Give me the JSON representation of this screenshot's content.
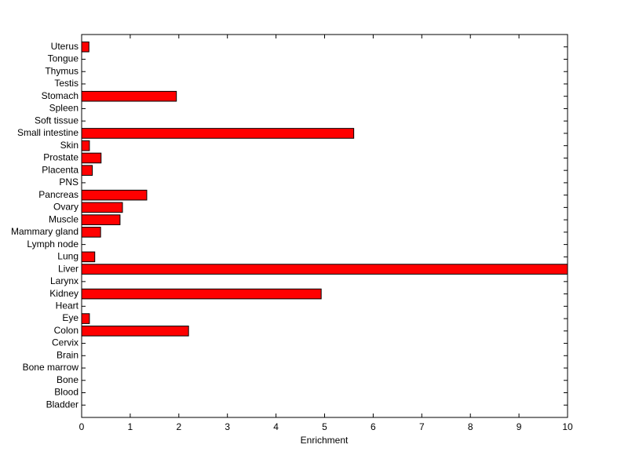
{
  "chart_data": {
    "type": "barh",
    "x_label": "Enrichment",
    "categories": [
      "Bladder",
      "Blood",
      "Bone",
      "Bone marrow",
      "Brain",
      "Cervix",
      "Colon",
      "Eye",
      "Heart",
      "Kidney",
      "Larynx",
      "Liver",
      "Lung",
      "Lymph node",
      "Mammary gland",
      "Muscle",
      "Ovary",
      "Pancreas",
      "PNS",
      "Placenta",
      "Prostate",
      "Skin",
      "Small intestine",
      "Soft tissue",
      "Spleen",
      "Stomach",
      "Testis",
      "Thymus",
      "Tongue",
      "Uterus"
    ],
    "values": [
      0,
      0,
      0,
      0,
      0,
      0,
      2.2,
      0.16,
      0,
      4.93,
      0,
      10,
      0.27,
      0,
      0.39,
      0.79,
      0.84,
      1.34,
      0,
      0.22,
      0.4,
      0.16,
      5.6,
      0,
      0,
      1.95,
      0,
      0,
      0,
      0.15
    ],
    "color": "#ff0000",
    "xlim": [
      0,
      10
    ],
    "xticks": [
      0,
      1,
      2,
      3,
      4,
      5,
      6,
      7,
      8,
      9,
      10
    ]
  }
}
